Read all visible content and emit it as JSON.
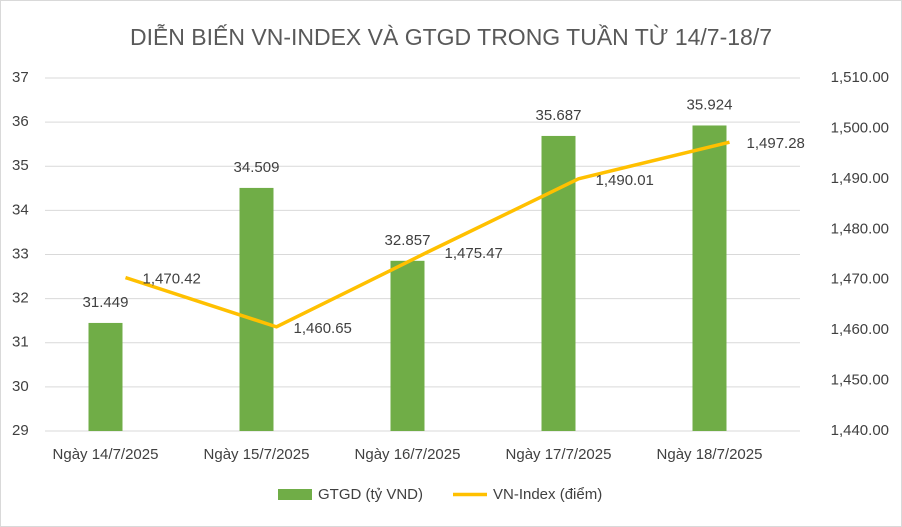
{
  "chart_data": {
    "type": "combo",
    "title": "DIỄN BIẾN VN-INDEX VÀ GTGD TRONG TUẦN TỪ 14/7-18/7",
    "categories": [
      "Ngày 14/7/2025",
      "Ngày 15/7/2025",
      "Ngày 16/7/2025",
      "Ngày 17/7/2025",
      "Ngày 18/7/2025"
    ],
    "series": [
      {
        "name": "GTGD (tỷ VND)",
        "type": "bar",
        "color": "#70ad47",
        "values": [
          31.449,
          34.509,
          32.857,
          35.687,
          35.924
        ]
      },
      {
        "name": "VN-Index (điểm)",
        "type": "line",
        "axis": "y2",
        "color": "#ffc000",
        "values": [
          1470.42,
          1460.65,
          1475.47,
          1490.01,
          1497.28
        ],
        "value_labels": [
          "1,470.42",
          "1,460.65",
          "1,475.47",
          "1,490.01",
          "1,497.28"
        ]
      }
    ],
    "ylim": [
      29,
      37
    ],
    "yticks": [
      29,
      30,
      31,
      32,
      33,
      34,
      35,
      36,
      37
    ],
    "y2lim": [
      1440,
      1510
    ],
    "y2ticks": [
      {
        "value": 1440,
        "label": "1,440.00"
      },
      {
        "value": 1450,
        "label": "1,450.00"
      },
      {
        "value": 1460,
        "label": "1,460.00"
      },
      {
        "value": 1470,
        "label": "1,470.00"
      },
      {
        "value": 1480,
        "label": "1,480.00"
      },
      {
        "value": 1490,
        "label": "1,490.00"
      },
      {
        "value": 1500,
        "label": "1,500.00"
      },
      {
        "value": 1510,
        "label": "1,510.00"
      }
    ],
    "grid": true,
    "legend": "bottom"
  }
}
